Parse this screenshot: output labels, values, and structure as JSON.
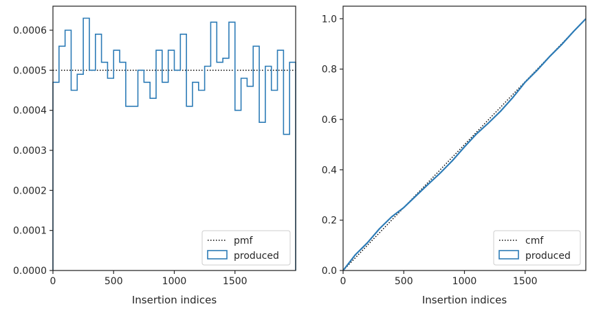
{
  "chart_data": [
    {
      "type": "step-histogram",
      "xlabel": "Insertion indices",
      "ylabel": "",
      "xlim": [
        0,
        2000
      ],
      "ylim": [
        0,
        0.00066
      ],
      "xticks": [
        0,
        500,
        1000,
        1500
      ],
      "yticks": [
        0,
        0.0001,
        0.0002,
        0.0003,
        0.0004,
        0.0005,
        0.0006
      ],
      "ytick_labels": [
        "0.0000",
        "0.0001",
        "0.0002",
        "0.0003",
        "0.0004",
        "0.0005",
        "0.0006"
      ],
      "legend_position": "lower-right",
      "colors": {
        "produced": "#2c7bb6",
        "reference": "#000000"
      },
      "reference": {
        "name": "pmf",
        "style": "dotted",
        "y": 0.0005
      },
      "produced": {
        "name": "produced",
        "bin_edges": [
          0,
          50,
          100,
          150,
          200,
          250,
          300,
          350,
          400,
          450,
          500,
          550,
          600,
          650,
          700,
          750,
          800,
          850,
          900,
          950,
          1000,
          1050,
          1100,
          1150,
          1200,
          1250,
          1300,
          1350,
          1400,
          1450,
          1500,
          1550,
          1600,
          1650,
          1700,
          1750,
          1800,
          1850,
          1900,
          1950,
          2000
        ],
        "values": [
          0.00047,
          0.00056,
          0.0006,
          0.00045,
          0.00049,
          0.00063,
          0.0005,
          0.00059,
          0.00052,
          0.00048,
          0.00055,
          0.00052,
          0.00041,
          0.00041,
          0.0005,
          0.00047,
          0.00043,
          0.00055,
          0.00047,
          0.00055,
          0.0005,
          0.00059,
          0.00041,
          0.00047,
          0.00045,
          0.00051,
          0.00062,
          0.00052,
          0.00053,
          0.00062,
          0.0004,
          0.00048,
          0.00046,
          0.00056,
          0.00037,
          0.00051,
          0.00045,
          0.00055,
          0.00034,
          0.00052
        ]
      }
    },
    {
      "type": "line",
      "xlabel": "Insertion indices",
      "ylabel": "",
      "xlim": [
        0,
        2000
      ],
      "ylim": [
        0,
        1.05
      ],
      "xticks": [
        0,
        500,
        1000,
        1500
      ],
      "yticks": [
        0,
        0.2,
        0.4,
        0.6,
        0.8,
        1.0
      ],
      "ytick_labels": [
        "0.0",
        "0.2",
        "0.4",
        "0.6",
        "0.8",
        "1.0"
      ],
      "legend_position": "lower-right",
      "colors": {
        "produced": "#2c7bb6",
        "reference": "#000000"
      },
      "reference": {
        "name": "cmf",
        "style": "dotted",
        "points": [
          [
            0,
            0
          ],
          [
            2000,
            1.0
          ]
        ]
      },
      "produced": {
        "name": "produced",
        "x": [
          0,
          100,
          200,
          300,
          400,
          500,
          600,
          700,
          800,
          900,
          1000,
          1100,
          1200,
          1300,
          1400,
          1500,
          1600,
          1700,
          1800,
          1900,
          2000
        ],
        "values": [
          0,
          0.062,
          0.11,
          0.166,
          0.213,
          0.25,
          0.296,
          0.342,
          0.387,
          0.436,
          0.491,
          0.543,
          0.587,
          0.634,
          0.688,
          0.748,
          0.796,
          0.849,
          0.897,
          0.95,
          1.0
        ]
      }
    }
  ]
}
